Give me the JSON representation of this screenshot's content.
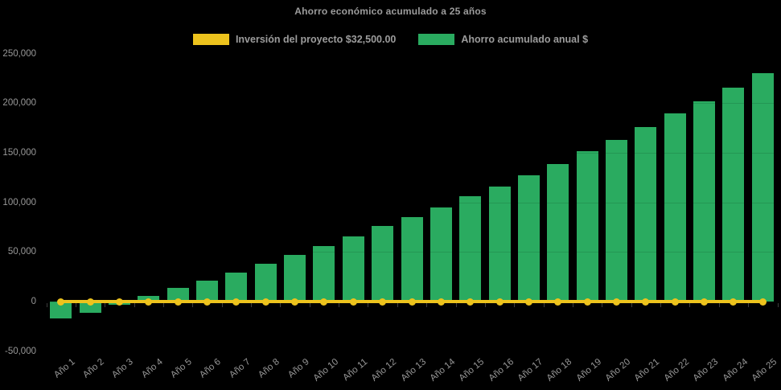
{
  "page": {
    "background_color": "#000000",
    "text_color": "#9c9c9c"
  },
  "chart_data": {
    "type": "bar",
    "title": "Ahorro económico acumulado a 25 años",
    "categories": [
      "Año 1",
      "Año 2",
      "Año 3",
      "Año 4",
      "Año 5",
      "Año 6",
      "Año 7",
      "Año 8",
      "Año 9",
      "Año 10",
      "Año 11",
      "Año 12",
      "Año 13",
      "Año 14",
      "Año 15",
      "Año 16",
      "Año 17",
      "Año 18",
      "Año 19",
      "Año 20",
      "Año 21",
      "Año 22",
      "Año 23",
      "Año 24",
      "Año 25"
    ],
    "series": [
      {
        "name": "Inversión del proyecto $32,500.00",
        "type": "line",
        "color": "#edc31d",
        "values": [
          0,
          0,
          0,
          0,
          0,
          0,
          0,
          0,
          0,
          0,
          0,
          0,
          0,
          0,
          0,
          0,
          0,
          0,
          0,
          0,
          0,
          0,
          0,
          0,
          0
        ]
      },
      {
        "name": "Ahorro acumulado anual $",
        "type": "bar",
        "color": "#2aab60",
        "values": [
          -17000,
          -11700,
          -3500,
          5600,
          13600,
          20800,
          29500,
          37800,
          47000,
          55600,
          65600,
          75900,
          84800,
          95000,
          106300,
          116300,
          127000,
          138700,
          151400,
          163200,
          175600,
          189500,
          202000,
          215500,
          230300
        ]
      }
    ],
    "xlabel": "",
    "ylabel": "",
    "ylim": [
      -50000,
      250000
    ],
    "ytick_step": 50000,
    "ytick_values": [
      250000,
      200000,
      150000,
      100000,
      50000,
      0,
      -50000
    ],
    "ytick_labels": [
      "250,000",
      "200,000",
      "150,000",
      "100,000",
      "50,000",
      "0",
      "-50,000"
    ],
    "grid": false,
    "legend_position": "top-center"
  }
}
